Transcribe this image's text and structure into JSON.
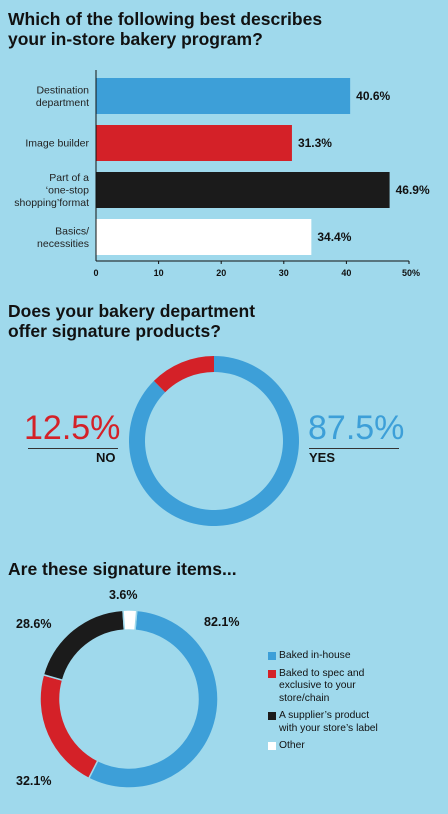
{
  "colors": {
    "blue": "#3d9fd8",
    "red": "#d42128",
    "black": "#1b1b1b",
    "white": "#ffffff",
    "bg": "#9fd9ec"
  },
  "q1": {
    "title_line1": "Which of the following best describes",
    "title_line2": "your in-store bakery program?"
  },
  "q2": {
    "title_line1": "Does your bakery department",
    "title_line2": "offer signature products?",
    "no_value": "12.5%",
    "no_label": "NO",
    "yes_value": "87.5%",
    "yes_label": "YES"
  },
  "q3": {
    "title": "Are these signature items..."
  },
  "chart_data": [
    {
      "type": "bar",
      "orientation": "horizontal",
      "categories": [
        [
          "Destination",
          "department"
        ],
        [
          "Image builder"
        ],
        [
          "Part of a",
          "‘one-stop",
          "shopping’format"
        ],
        [
          "Basics/",
          "necessities"
        ]
      ],
      "values": [
        40.6,
        31.3,
        46.9,
        34.4
      ],
      "value_labels": [
        "40.6%",
        "31.3%",
        "46.9%",
        "34.4%"
      ],
      "colors": [
        "#3d9fd8",
        "#d42128",
        "#1b1b1b",
        "#ffffff"
      ],
      "xticks": [
        "0",
        "10",
        "20",
        "30",
        "40",
        "50%"
      ],
      "xlim": [
        0,
        50
      ]
    },
    {
      "type": "pie",
      "style": "donut",
      "labels": [
        "YES",
        "NO"
      ],
      "values": [
        87.5,
        12.5
      ],
      "colors": [
        "#3d9fd8",
        "#d42128"
      ]
    },
    {
      "type": "pie",
      "style": "donut",
      "labels": [
        "Baked in-house",
        "Baked to spec and exclusive to your store/chain",
        "A supplier’s product with your store’s label",
        "Other"
      ],
      "legend_lines": [
        [
          "Baked in-house"
        ],
        [
          "Baked to spec and",
          "exclusive to your",
          "store/chain"
        ],
        [
          "A supplier’s product",
          "with your store’s label"
        ],
        [
          "Other"
        ]
      ],
      "values": [
        82.1,
        32.1,
        28.6,
        3.6
      ],
      "value_labels": [
        "82.1%",
        "32.1%",
        "28.6%",
        "3.6%"
      ],
      "colors": [
        "#3d9fd8",
        "#d42128",
        "#1b1b1b",
        "#ffffff"
      ],
      "legend_position": "right"
    }
  ]
}
